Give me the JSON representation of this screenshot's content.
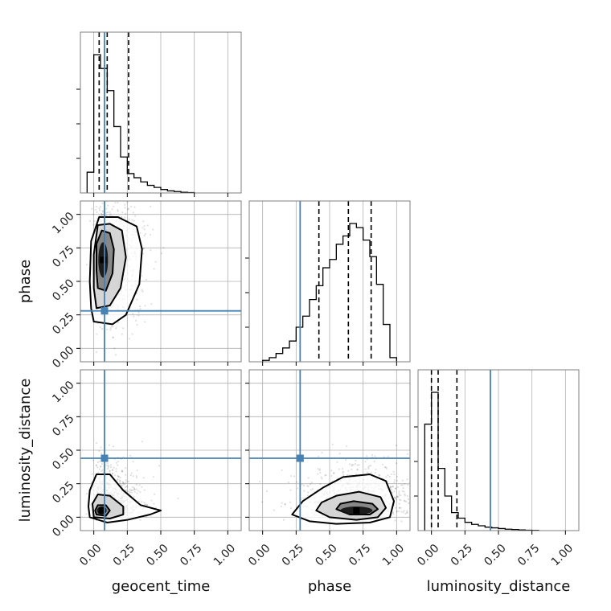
{
  "chart_data": {
    "type": "corner",
    "parameters": [
      "geocent_time",
      "phase",
      "luminosity_distance"
    ],
    "axis_range": [
      -0.1,
      1.1
    ],
    "tick_values": [
      0.0,
      0.25,
      0.5,
      0.75,
      1.0
    ],
    "tick_labels": [
      "0.00",
      "0.25",
      "0.50",
      "0.75",
      "1.00"
    ],
    "grid": true,
    "truth_color": "#4682b4",
    "truths": {
      "geocent_time": 0.08,
      "phase": 0.28,
      "luminosity_distance": 0.44
    },
    "histograms": {
      "geocent_time": {
        "bin_edges": [
          -0.05,
          0.0,
          0.05,
          0.1,
          0.15,
          0.2,
          0.25,
          0.3,
          0.35,
          0.4,
          0.45,
          0.5,
          0.55,
          0.6,
          0.65,
          0.7,
          0.75
        ],
        "counts": [
          0.15,
          1.0,
          0.9,
          0.74,
          0.48,
          0.26,
          0.14,
          0.11,
          0.08,
          0.055,
          0.04,
          0.025,
          0.015,
          0.01,
          0.005,
          0.003
        ],
        "quantiles": [
          0.04,
          0.1,
          0.26
        ]
      },
      "phase": {
        "bin_edges": [
          0.0,
          0.05,
          0.1,
          0.15,
          0.2,
          0.25,
          0.3,
          0.35,
          0.4,
          0.45,
          0.5,
          0.55,
          0.6,
          0.65,
          0.7,
          0.75,
          0.8,
          0.85,
          0.9,
          0.95,
          1.0
        ],
        "counts": [
          0.01,
          0.03,
          0.06,
          0.1,
          0.15,
          0.25,
          0.33,
          0.45,
          0.55,
          0.68,
          0.74,
          0.85,
          0.91,
          1.0,
          0.97,
          0.88,
          0.76,
          0.56,
          0.27,
          0.03
        ],
        "quantiles": [
          0.42,
          0.64,
          0.81
        ]
      },
      "luminosity_distance": {
        "bin_edges": [
          -0.05,
          0.0,
          0.05,
          0.1,
          0.15,
          0.2,
          0.25,
          0.3,
          0.35,
          0.4,
          0.45,
          0.5,
          0.55,
          0.6,
          0.65,
          0.7,
          0.75,
          0.8
        ],
        "counts": [
          0.77,
          1.0,
          0.45,
          0.25,
          0.13,
          0.09,
          0.06,
          0.045,
          0.035,
          0.025,
          0.02,
          0.015,
          0.01,
          0.008,
          0.005,
          0.003,
          0.002
        ],
        "quantiles": [
          0.0,
          0.05,
          0.19
        ]
      }
    },
    "density_panels": [
      {
        "x_param": "geocent_time",
        "y_param": "phase",
        "core": [
          0.07,
          0.66
        ],
        "contours": [
          [
            [
              0.0,
              0.2
            ],
            [
              0.14,
              0.18
            ],
            [
              0.24,
              0.25
            ],
            [
              0.34,
              0.48
            ],
            [
              0.36,
              0.74
            ],
            [
              0.32,
              0.91
            ],
            [
              0.18,
              0.98
            ],
            [
              0.04,
              0.98
            ],
            [
              -0.02,
              0.8
            ],
            [
              -0.03,
              0.5
            ],
            [
              -0.02,
              0.3
            ]
          ],
          [
            [
              0.02,
              0.3
            ],
            [
              0.12,
              0.32
            ],
            [
              0.2,
              0.45
            ],
            [
              0.24,
              0.68
            ],
            [
              0.21,
              0.88
            ],
            [
              0.12,
              0.93
            ],
            [
              0.03,
              0.92
            ],
            [
              0.0,
              0.7
            ],
            [
              0.0,
              0.45
            ]
          ],
          [
            [
              0.03,
              0.45
            ],
            [
              0.09,
              0.43
            ],
            [
              0.14,
              0.56
            ],
            [
              0.15,
              0.74
            ],
            [
              0.12,
              0.86
            ],
            [
              0.06,
              0.88
            ],
            [
              0.02,
              0.78
            ],
            [
              0.02,
              0.58
            ]
          ]
        ]
      },
      {
        "x_param": "geocent_time",
        "y_param": "luminosity_distance",
        "core": [
          0.06,
          0.05
        ],
        "contours": [
          [
            [
              -0.03,
              0.0
            ],
            [
              0.1,
              -0.04
            ],
            [
              0.25,
              -0.02
            ],
            [
              0.42,
              0.02
            ],
            [
              0.5,
              0.05
            ],
            [
              0.35,
              0.09
            ],
            [
              0.22,
              0.2
            ],
            [
              0.12,
              0.32
            ],
            [
              0.02,
              0.32
            ],
            [
              -0.03,
              0.2
            ],
            [
              -0.04,
              0.08
            ]
          ],
          [
            [
              0.0,
              0.0
            ],
            [
              0.12,
              -0.01
            ],
            [
              0.22,
              0.02
            ],
            [
              0.22,
              0.08
            ],
            [
              0.12,
              0.16
            ],
            [
              0.03,
              0.17
            ],
            [
              -0.01,
              0.1
            ]
          ],
          [
            [
              0.02,
              0.02
            ],
            [
              0.09,
              0.01
            ],
            [
              0.12,
              0.05
            ],
            [
              0.09,
              0.09
            ],
            [
              0.03,
              0.09
            ],
            [
              0.01,
              0.05
            ]
          ]
        ]
      },
      {
        "x_param": "phase",
        "y_param": "luminosity_distance",
        "core": [
          0.7,
          0.05
        ],
        "contours": [
          [
            [
              0.22,
              0.02
            ],
            [
              0.35,
              -0.03
            ],
            [
              0.55,
              -0.05
            ],
            [
              0.8,
              -0.04
            ],
            [
              0.95,
              0.0
            ],
            [
              0.98,
              0.12
            ],
            [
              0.92,
              0.27
            ],
            [
              0.8,
              0.32
            ],
            [
              0.6,
              0.3
            ],
            [
              0.45,
              0.22
            ],
            [
              0.3,
              0.12
            ]
          ],
          [
            [
              0.4,
              0.05
            ],
            [
              0.5,
              0.0
            ],
            [
              0.7,
              -0.02
            ],
            [
              0.86,
              0.0
            ],
            [
              0.92,
              0.07
            ],
            [
              0.88,
              0.15
            ],
            [
              0.72,
              0.19
            ],
            [
              0.55,
              0.16
            ],
            [
              0.44,
              0.11
            ]
          ],
          [
            [
              0.55,
              0.06
            ],
            [
              0.65,
              0.02
            ],
            [
              0.8,
              0.02
            ],
            [
              0.86,
              0.06
            ],
            [
              0.82,
              0.1
            ],
            [
              0.68,
              0.12
            ],
            [
              0.58,
              0.1
            ]
          ]
        ]
      }
    ]
  }
}
